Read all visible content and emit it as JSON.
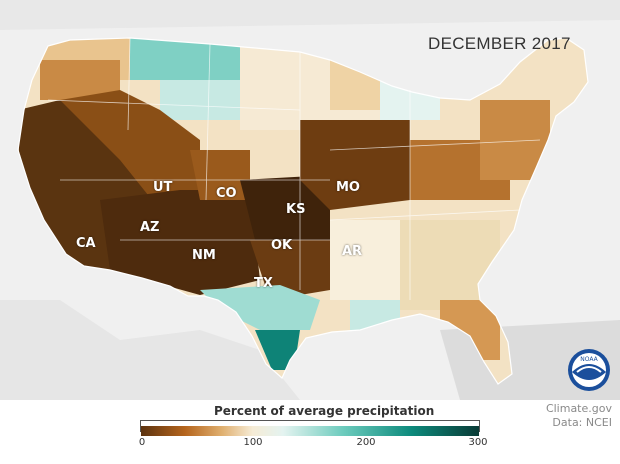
{
  "map": {
    "title": "DECEMBER 2017",
    "state_labels": [
      {
        "id": "ca",
        "text": "CA"
      },
      {
        "id": "az",
        "text": "AZ"
      },
      {
        "id": "ut",
        "text": "UT"
      },
      {
        "id": "co",
        "text": "CO"
      },
      {
        "id": "nm",
        "text": "NM"
      },
      {
        "id": "ks",
        "text": "KS"
      },
      {
        "id": "ok",
        "text": "OK"
      },
      {
        "id": "tx",
        "text": "TX"
      },
      {
        "id": "mo",
        "text": "MO"
      },
      {
        "id": "ar",
        "text": "AR"
      }
    ]
  },
  "legend": {
    "title": "Percent of average precipitation",
    "ticks": [
      "0",
      "100",
      "200",
      "300"
    ],
    "colors": [
      "#5c3310",
      "#b5651d",
      "#e0b070",
      "#f6ecd6",
      "#e4f3f0",
      "#6ccbbd",
      "#0d8a7c",
      "#0a3b36"
    ]
  },
  "credits": {
    "source": "Climate.gov",
    "data": "Data: NCEI"
  },
  "logo": {
    "icon": "noaa-logo-icon",
    "text": "NOAA"
  }
}
